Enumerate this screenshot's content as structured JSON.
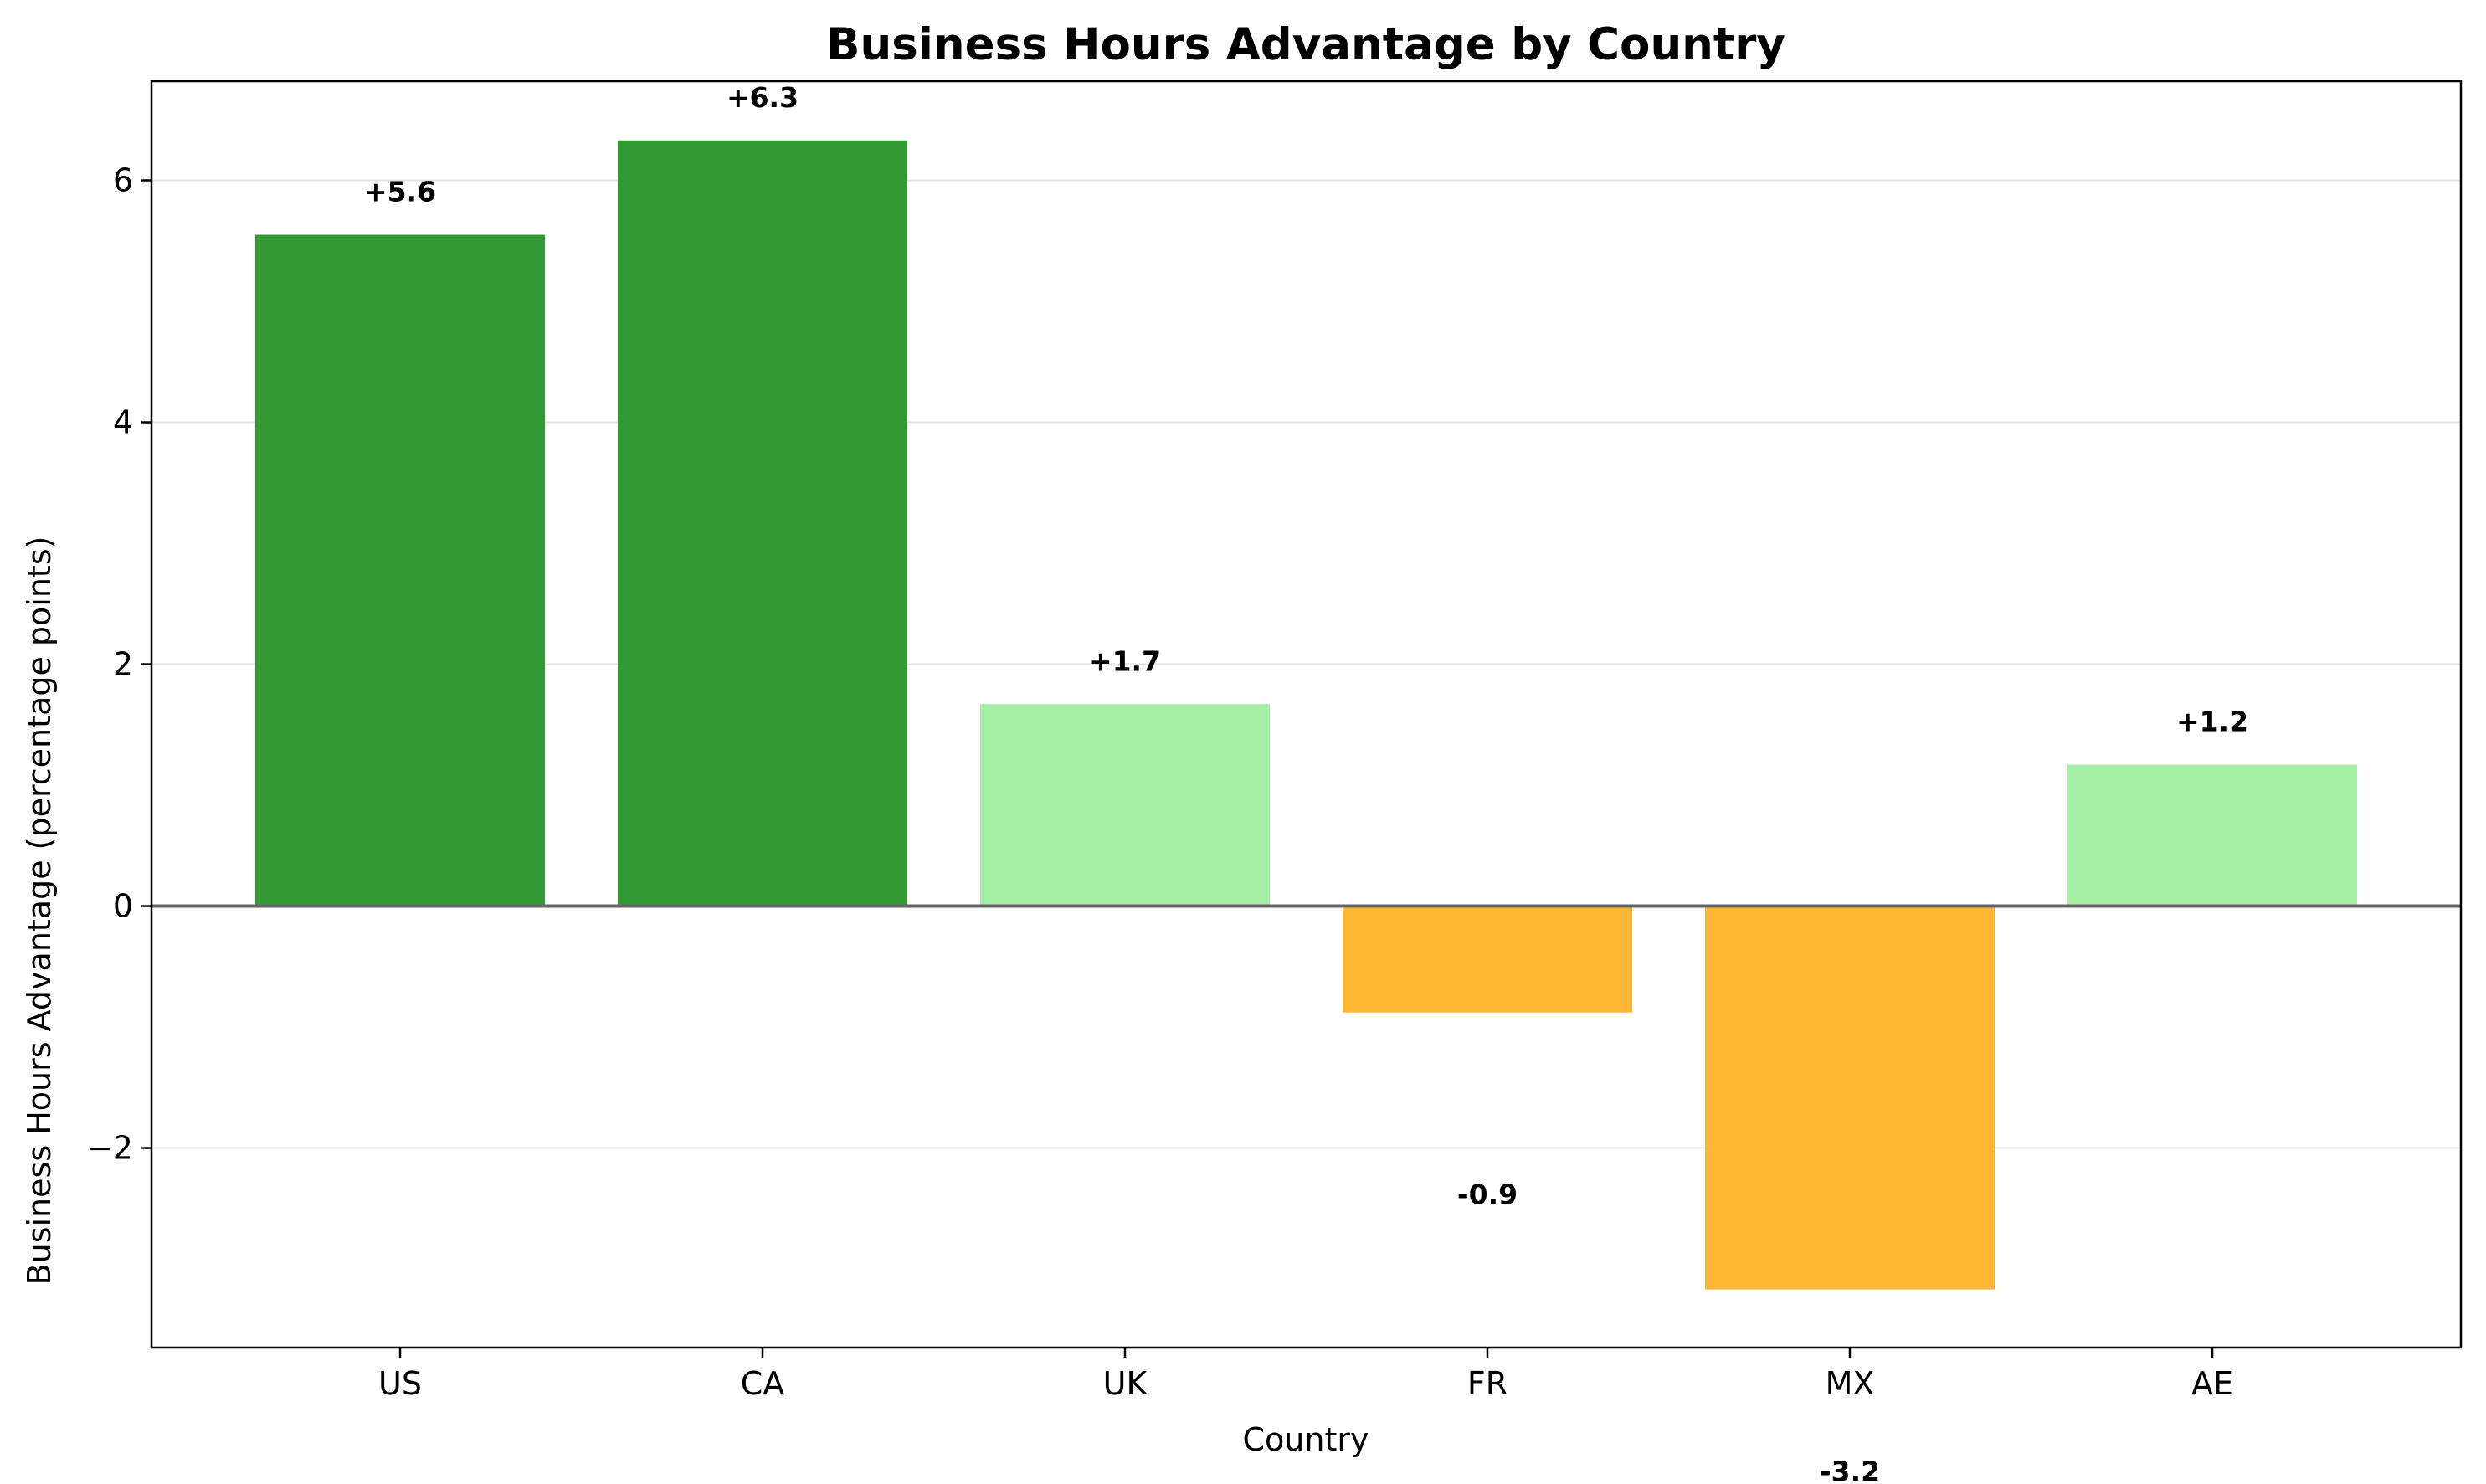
{
  "chart_data": {
    "type": "bar",
    "title": "Business Hours Advantage by Country",
    "xlabel": "Country",
    "ylabel": "Business Hours Advantage (percentage points)",
    "categories": [
      "US",
      "CA",
      "UK",
      "FR",
      "MX",
      "AE"
    ],
    "values": [
      5.55,
      6.33,
      1.67,
      -0.88,
      -3.17,
      1.17
    ],
    "data_labels": [
      "+5.6",
      "+6.3",
      "+1.7",
      "-0.9",
      "-3.2",
      "+1.2"
    ],
    "bar_colors": [
      "#339933",
      "#339933",
      "#a6f0a6",
      "#ffb733",
      "#ffb733",
      "#a6f0a6"
    ],
    "ylim": [
      -3.65,
      6.82
    ],
    "yticks": [
      -2,
      0,
      2,
      4,
      6
    ],
    "ytick_labels": [
      "−2",
      "0",
      "2",
      "4",
      "6"
    ],
    "grid": "y",
    "zero_line_color": "#666666",
    "legend": "none"
  }
}
